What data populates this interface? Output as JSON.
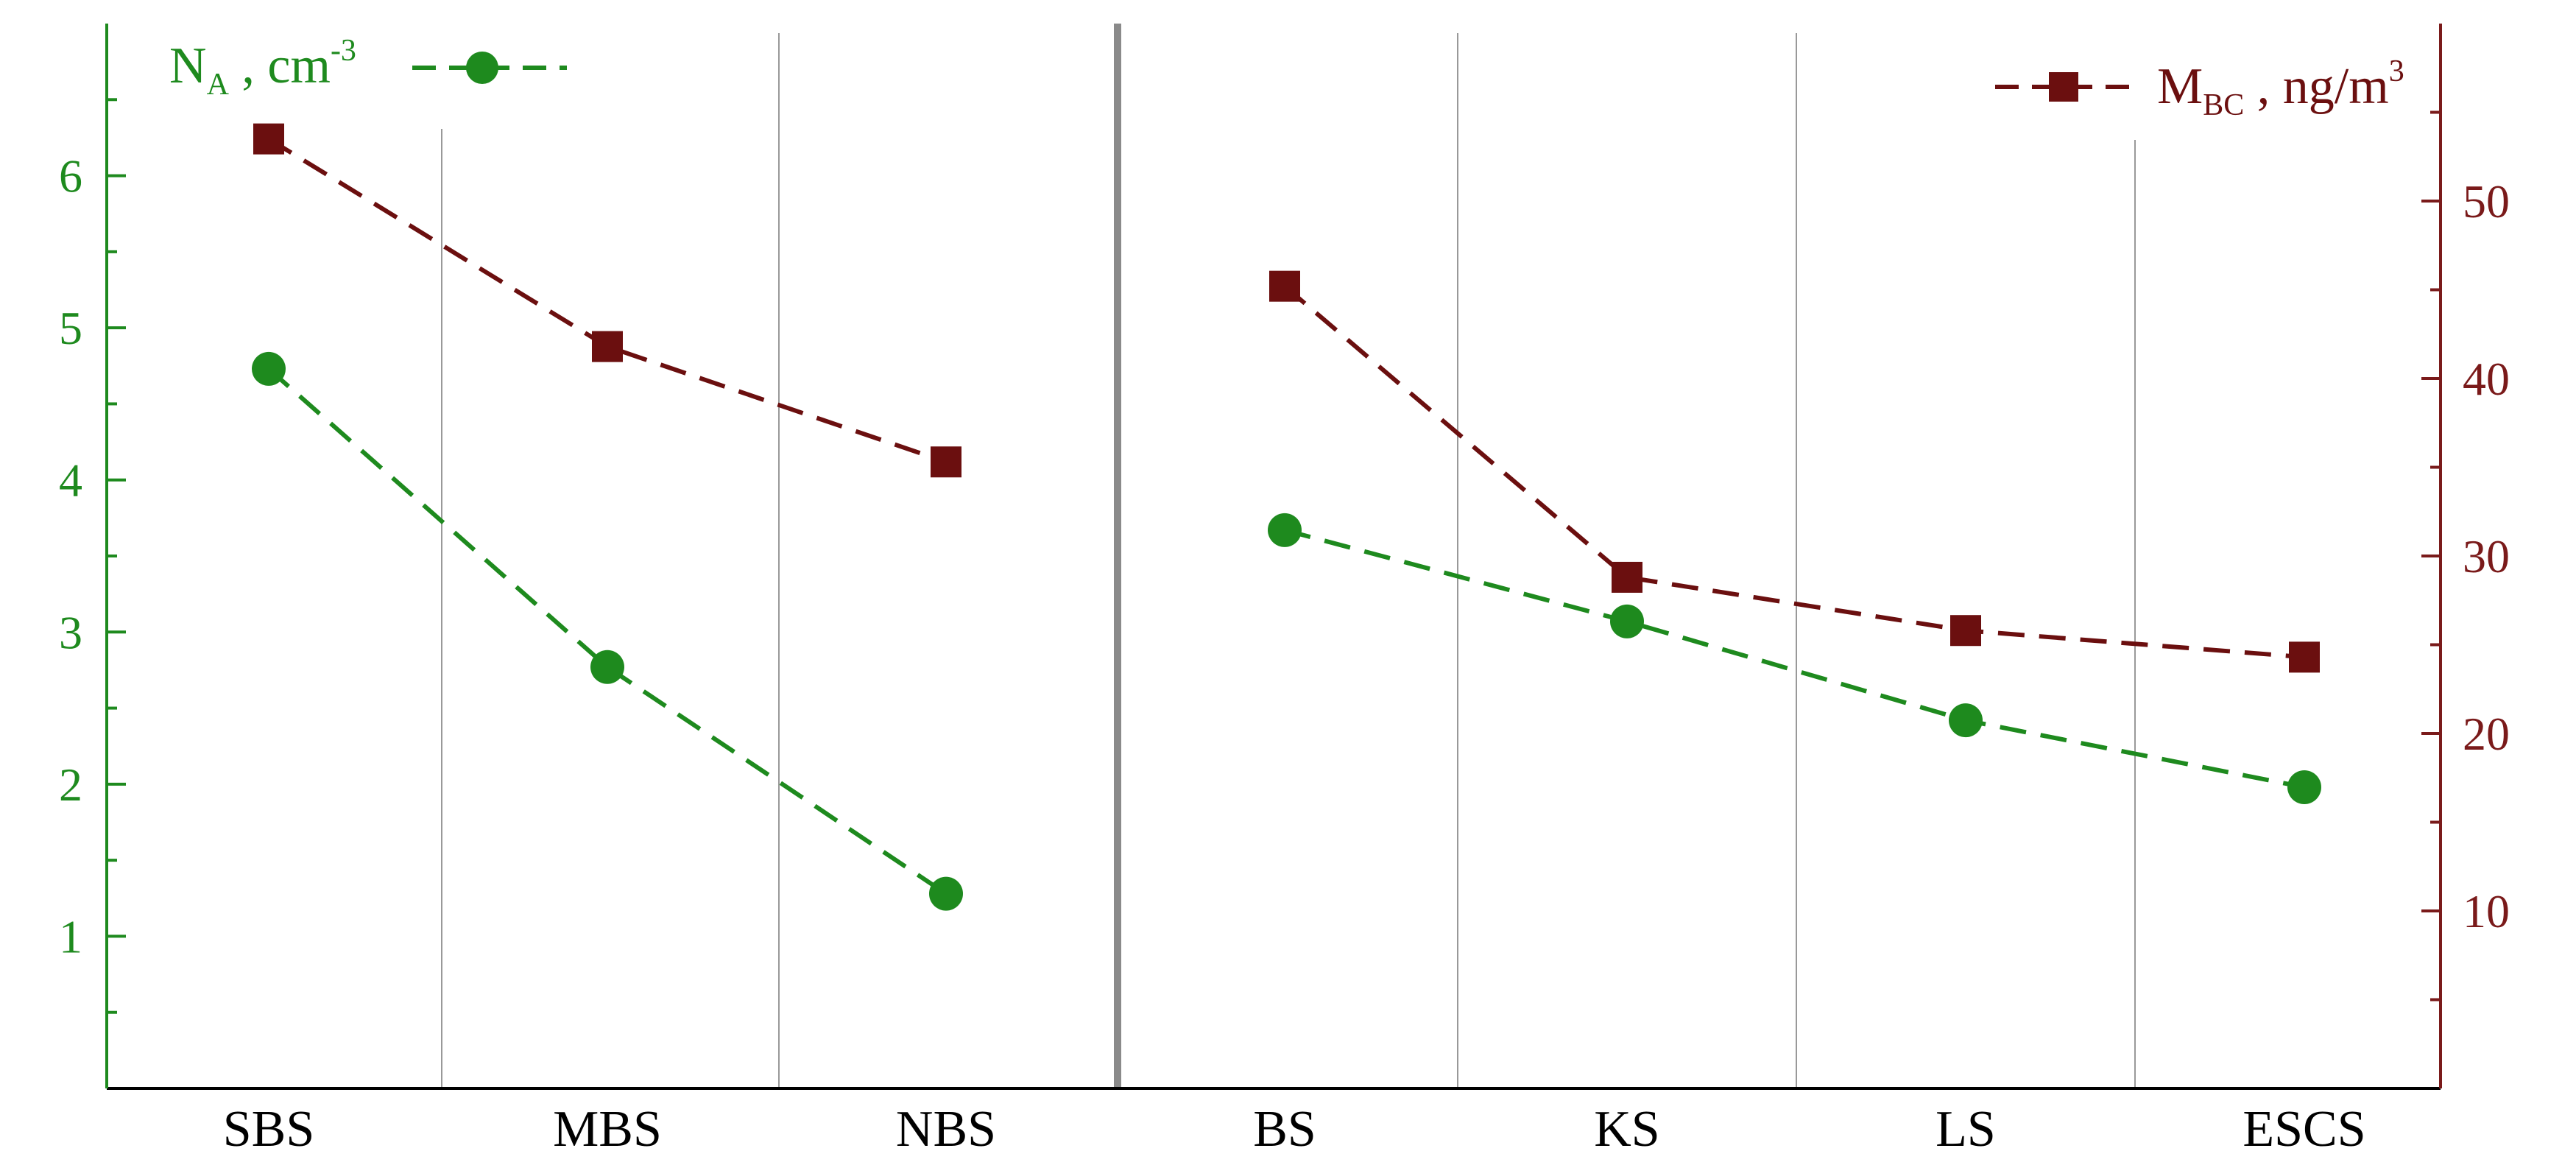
{
  "chart_data": {
    "type": "line",
    "categories": [
      "SBS",
      "MBS",
      "NBS",
      "BS",
      "KS",
      "LS",
      "ESCS"
    ],
    "groups": [
      [
        "SBS",
        "MBS",
        "NBS"
      ],
      [
        "BS",
        "KS",
        "LS",
        "ESCS"
      ]
    ],
    "y_left": {
      "ticks": [
        "1",
        "2",
        "3",
        "4",
        "5",
        "6"
      ],
      "ylim": [
        0,
        7
      ],
      "color": "#1e8a1e"
    },
    "y_right": {
      "ticks": [
        "10",
        "20",
        "30",
        "40",
        "50"
      ],
      "ylim": [
        0,
        60
      ],
      "color": "#7a1a1a"
    },
    "series": [
      {
        "name": "N_A, cm^-3",
        "legend": {
          "main": "N",
          "sub": "A",
          "rest": " , cm",
          "sup": "-3"
        },
        "axis": "left",
        "marker": "circle",
        "color": "#1e8a1e",
        "values": [
          4.73,
          2.77,
          1.28,
          3.67,
          3.07,
          2.42,
          1.98
        ]
      },
      {
        "name": "M_BC, ng/m^3",
        "legend": {
          "main": "M",
          "sub": "BC",
          "rest": " , ng/m",
          "sup": "3"
        },
        "axis": "right",
        "marker": "square",
        "color": "#6b0f0f",
        "values": [
          53.5,
          41.8,
          35.3,
          45.2,
          28.8,
          25.8,
          24.3
        ]
      }
    ],
    "grid": "vertical-separators",
    "legend_placement": {
      "N_A": "top-left",
      "M_BC": "top-right"
    }
  }
}
